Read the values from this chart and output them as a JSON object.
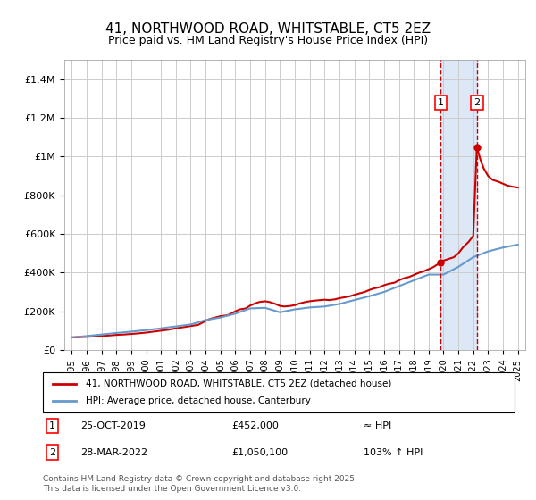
{
  "title": "41, NORTHWOOD ROAD, WHITSTABLE, CT5 2EZ",
  "subtitle": "Price paid vs. HM Land Registry's House Price Index (HPI)",
  "legend_line1": "41, NORTHWOOD ROAD, WHITSTABLE, CT5 2EZ (detached house)",
  "legend_line2": "HPI: Average price, detached house, Canterbury",
  "annotation1_box": "1",
  "annotation1_date": "25-OCT-2019",
  "annotation1_price": "£452,000",
  "annotation1_hpi": "≈ HPI",
  "annotation2_box": "2",
  "annotation2_date": "28-MAR-2022",
  "annotation2_price": "£1,050,100",
  "annotation2_hpi": "103% ↑ HPI",
  "footnote": "Contains HM Land Registry data © Crown copyright and database right 2025.\nThis data is licensed under the Open Government Licence v3.0.",
  "red_line_color": "#cc0000",
  "blue_line_color": "#6699cc",
  "grid_color": "#cccccc",
  "shaded_region_color": "#dce8f5",
  "ylim": [
    0,
    1500000
  ],
  "yticks": [
    0,
    200000,
    400000,
    600000,
    800000,
    1000000,
    1200000,
    1400000
  ],
  "ytick_labels": [
    "£0",
    "£200K",
    "£400K",
    "£600K",
    "£800K",
    "£1M",
    "£1.2M",
    "£1.4M"
  ],
  "sale1_year": 2019.82,
  "sale1_price": 452000,
  "sale2_year": 2022.24,
  "sale2_price": 1050100,
  "red_x": [
    1995,
    1996,
    1997,
    1997.5,
    1998,
    1998.5,
    1999,
    1999.5,
    2000,
    2000.5,
    2001,
    2001.5,
    2002,
    2002.5,
    2003,
    2003.5,
    2004,
    2004.2,
    2004.5,
    2005,
    2005.5,
    2006,
    2006.3,
    2006.7,
    2007,
    2007.3,
    2007.6,
    2008,
    2008.3,
    2008.7,
    2009,
    2009.3,
    2009.7,
    2010,
    2010.3,
    2010.7,
    2011,
    2011.3,
    2011.7,
    2012,
    2012.3,
    2012.7,
    2013,
    2013.3,
    2013.7,
    2014,
    2014.3,
    2014.7,
    2015,
    2015.3,
    2015.7,
    2016,
    2016.3,
    2016.7,
    2017,
    2017.3,
    2017.7,
    2018,
    2018.3,
    2018.7,
    2019,
    2019.3,
    2019.5,
    2019.82,
    2020,
    2020.3,
    2020.7,
    2021,
    2021.3,
    2021.7,
    2022,
    2022.24,
    2022.5,
    2022.7,
    2023,
    2023.3,
    2023.7,
    2024,
    2024.3,
    2024.6,
    2025
  ],
  "red_y": [
    65000,
    68000,
    72000,
    75000,
    78000,
    80000,
    83000,
    86000,
    90000,
    95000,
    100000,
    105000,
    112000,
    118000,
    124000,
    130000,
    150000,
    158000,
    165000,
    175000,
    180000,
    200000,
    210000,
    215000,
    230000,
    240000,
    248000,
    252000,
    248000,
    238000,
    228000,
    225000,
    228000,
    232000,
    240000,
    248000,
    252000,
    255000,
    258000,
    260000,
    258000,
    262000,
    268000,
    272000,
    278000,
    285000,
    292000,
    300000,
    310000,
    318000,
    325000,
    335000,
    342000,
    348000,
    360000,
    370000,
    378000,
    388000,
    398000,
    408000,
    418000,
    428000,
    438000,
    452000,
    462000,
    470000,
    480000,
    500000,
    530000,
    560000,
    590000,
    1050100,
    980000,
    940000,
    900000,
    880000,
    870000,
    860000,
    850000,
    845000,
    840000
  ],
  "blue_x": [
    1995,
    1996,
    1997,
    1998,
    1999,
    2000,
    2001,
    2002,
    2003,
    2004,
    2005,
    2006,
    2007,
    2008,
    2009,
    2010,
    2011,
    2012,
    2013,
    2014,
    2015,
    2016,
    2017,
    2018,
    2019,
    2020,
    2021,
    2022,
    2023,
    2024,
    2025
  ],
  "blue_y": [
    65000,
    72000,
    80000,
    88000,
    95000,
    103000,
    112000,
    122000,
    132000,
    155000,
    168000,
    188000,
    215000,
    218000,
    195000,
    210000,
    220000,
    225000,
    238000,
    258000,
    278000,
    300000,
    330000,
    360000,
    390000,
    390000,
    430000,
    480000,
    510000,
    530000,
    545000
  ],
  "xmin": 1994.5,
  "xmax": 2025.5,
  "xticks": [
    1995,
    1996,
    1997,
    1998,
    1999,
    2000,
    2001,
    2002,
    2003,
    2004,
    2005,
    2006,
    2007,
    2008,
    2009,
    2010,
    2011,
    2012,
    2013,
    2014,
    2015,
    2016,
    2017,
    2018,
    2019,
    2020,
    2021,
    2022,
    2023,
    2024,
    2025
  ],
  "vline1_x": 2019.82,
  "vline2_x": 2022.24,
  "shade_x1": 2019.82,
  "shade_x2": 2022.24
}
